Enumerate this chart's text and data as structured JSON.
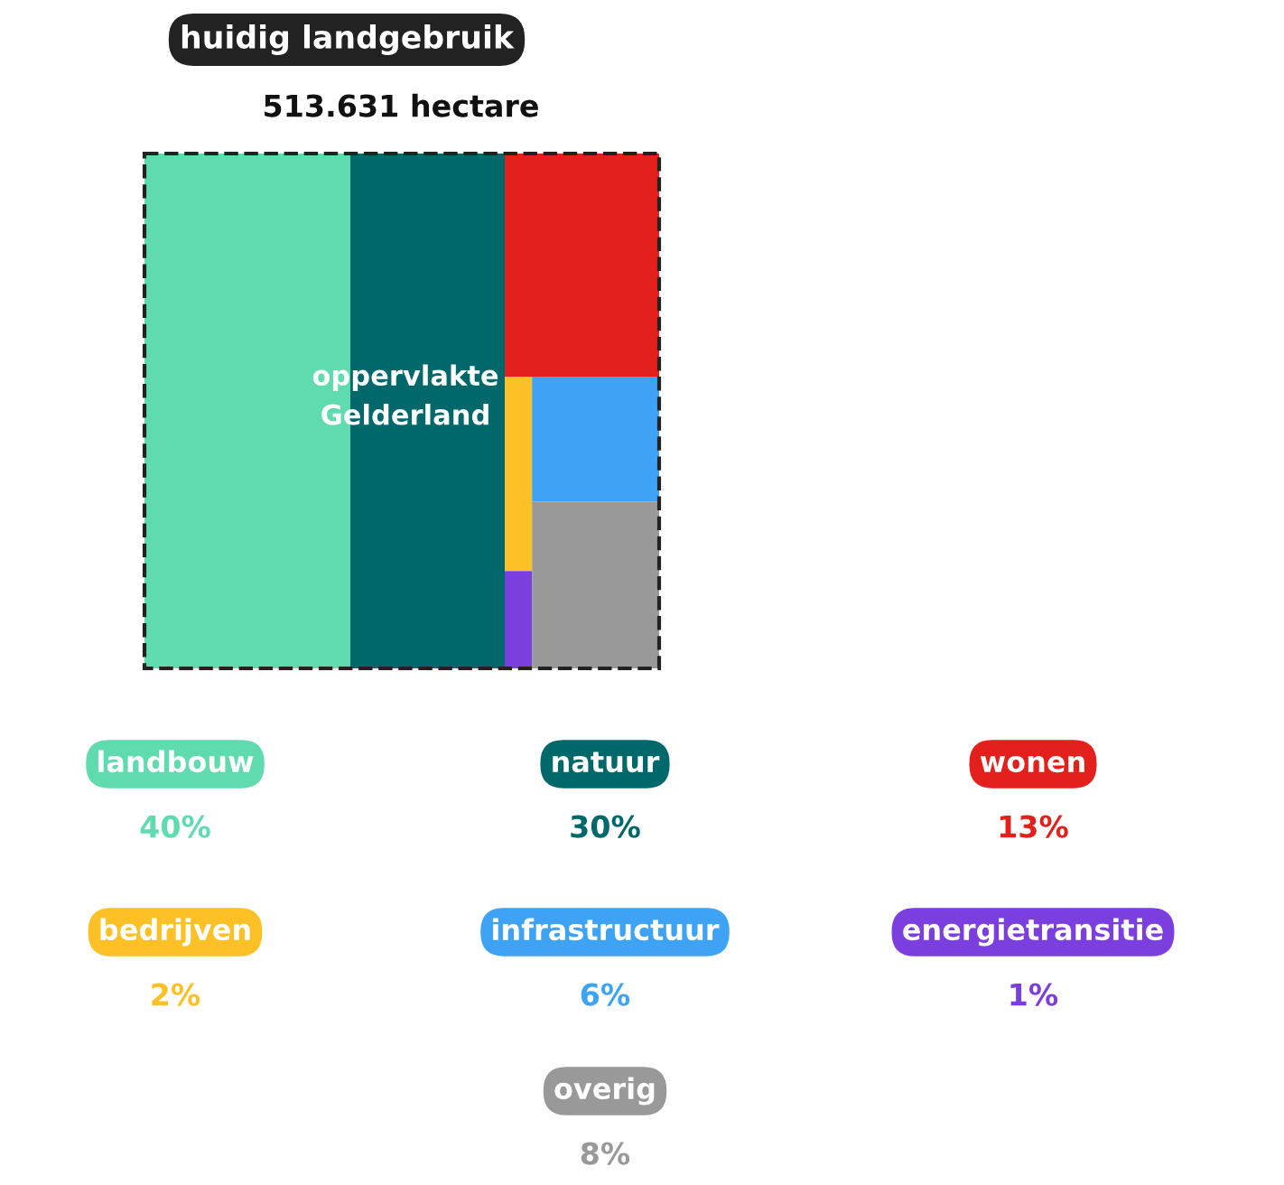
{
  "chart_data": {
    "type": "other",
    "title": "huidig landgebruik",
    "subtitle": "513.631 hectare",
    "annotations": [
      "oppervlakte\nGelderland"
    ],
    "categories": [
      "landbouw",
      "natuur",
      "wonen",
      "bedrijven",
      "infrastructuur",
      "energietransitie",
      "overig"
    ],
    "values": [
      40,
      30,
      13,
      2,
      6,
      1,
      8
    ],
    "value_labels": [
      "40%",
      "30%",
      "13%",
      "2%",
      "6%",
      "1%",
      "8%"
    ],
    "colors": [
      "#5fdbae",
      "#00686a",
      "#e3201b",
      "#fdc127",
      "#3ea3f5",
      "#7b3fe0",
      "#999999"
    ]
  }
}
